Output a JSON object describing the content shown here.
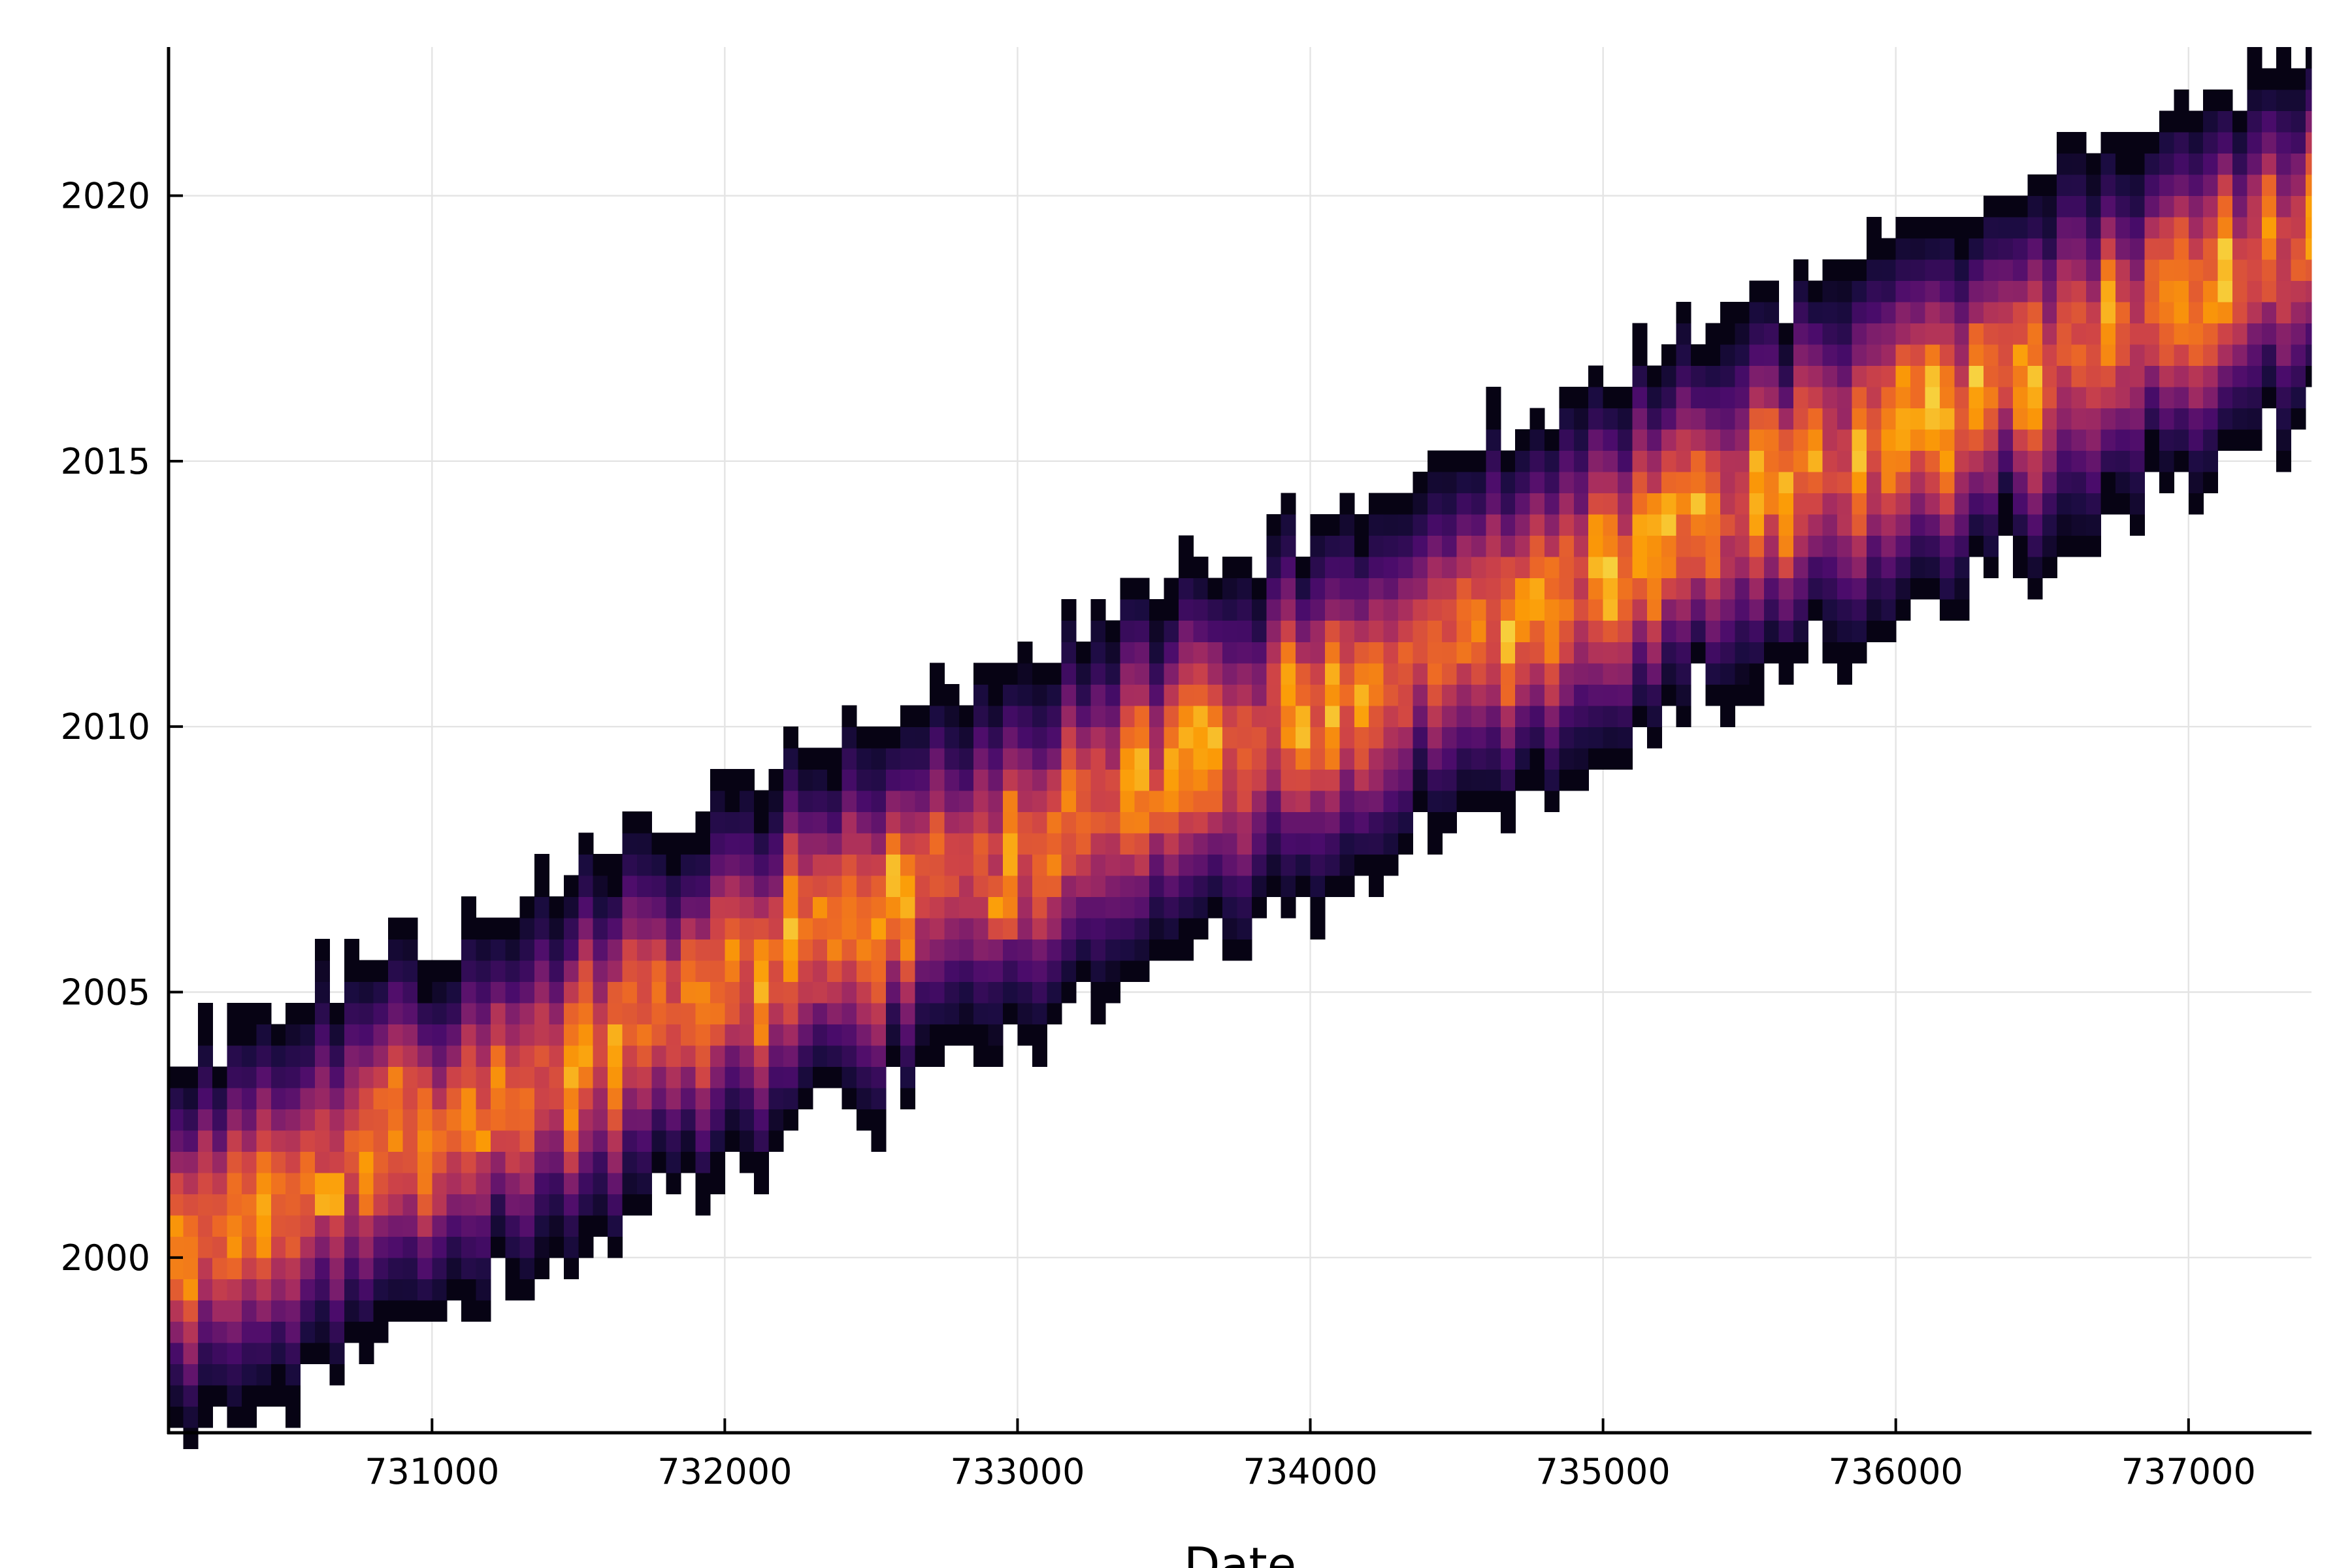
{
  "chart_data": {
    "type": "heatmap",
    "title": "",
    "xlabel": "Date",
    "ylabel": "",
    "xlim": [
      730100,
      737420
    ],
    "ylim": [
      1996.7,
      2022.8
    ],
    "xticks": [
      731000,
      732000,
      733000,
      734000,
      735000,
      736000,
      737000
    ],
    "xtick_labels": [
      "731000",
      "732000",
      "733000",
      "734000",
      "735000",
      "736000",
      "737000"
    ],
    "yticks": [
      2000,
      2005,
      2010,
      2015,
      2020
    ],
    "ytick_labels": [
      "2000",
      "2005",
      "2010",
      "2015",
      "2020"
    ],
    "grid": true,
    "legend": "none",
    "colormap": "inferno",
    "colormap_stops": [
      "#000004",
      "#1b0c41",
      "#4a0c6b",
      "#781c6d",
      "#a52c60",
      "#cf4446",
      "#ed6925",
      "#fb9b06",
      "#f7d13d",
      "#fcffa4"
    ],
    "density_band": {
      "x_start": 730100,
      "x_end": 737420,
      "column_width_days": 50,
      "center_start_year": 2000.2,
      "center_end_year": 2019.3,
      "band_half_width_years": 3.2,
      "hotspots": [
        {
          "x": 730650,
          "y": 2001.2,
          "intensity": 1.0
        },
        {
          "x": 731180,
          "y": 2002.3,
          "intensity": 0.85
        },
        {
          "x": 731850,
          "y": 2003.8,
          "intensity": 0.65
        },
        {
          "x": 732300,
          "y": 2005.2,
          "intensity": 0.7
        },
        {
          "x": 732950,
          "y": 2006.6,
          "intensity": 1.0
        },
        {
          "x": 733050,
          "y": 2008.0,
          "intensity": 0.7
        },
        {
          "x": 733450,
          "y": 2008.5,
          "intensity": 0.85
        },
        {
          "x": 733950,
          "y": 2009.9,
          "intensity": 0.75
        },
        {
          "x": 734800,
          "y": 2011.7,
          "intensity": 0.8
        },
        {
          "x": 735100,
          "y": 2012.9,
          "intensity": 0.85
        },
        {
          "x": 735450,
          "y": 2014.2,
          "intensity": 0.65
        },
        {
          "x": 735950,
          "y": 2015.5,
          "intensity": 0.75
        },
        {
          "x": 736200,
          "y": 2015.9,
          "intensity": 0.8
        },
        {
          "x": 736420,
          "y": 2016.8,
          "intensity": 0.65
        },
        {
          "x": 736800,
          "y": 2017.8,
          "intensity": 0.65
        },
        {
          "x": 737020,
          "y": 2017.6,
          "intensity": 0.8
        },
        {
          "x": 737400,
          "y": 2019.2,
          "intensity": 0.6
        }
      ]
    }
  }
}
